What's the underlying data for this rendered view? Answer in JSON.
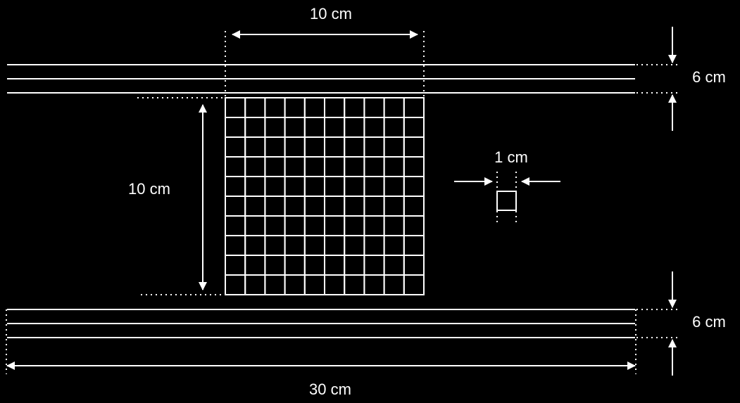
{
  "labels": {
    "grid_width": "10 cm",
    "grid_height": "10 cm",
    "band_top": "6 cm",
    "band_bottom": "6 cm",
    "unit_square": "1 cm",
    "total_length": "30 cm"
  },
  "grid": {
    "rows": 10,
    "cols": 10
  },
  "colors": {
    "background": "#000000",
    "stroke": "#ffffff"
  }
}
